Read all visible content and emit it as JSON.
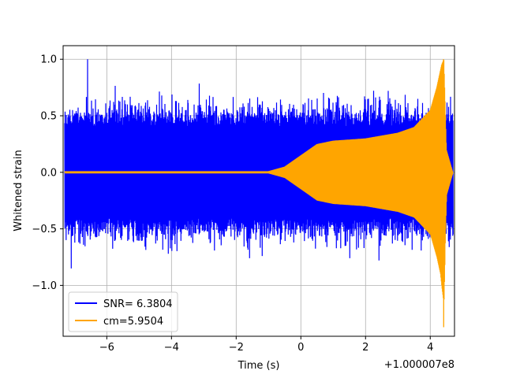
{
  "chart_data": {
    "type": "line",
    "xlabel": "Time (s)",
    "ylabel": "Whitened strain",
    "x_offset_label": "+1.000007e8",
    "xlim": [
      -7.35,
      4.75
    ],
    "ylim": [
      -1.45,
      1.12
    ],
    "x_ticks": [
      -6,
      -4,
      -2,
      0,
      2,
      4
    ],
    "x_tick_labels": [
      "−6",
      "−4",
      "−2",
      "0",
      "2",
      "4"
    ],
    "y_ticks": [
      1.0,
      0.5,
      0.0,
      -0.5,
      -1.0
    ],
    "y_tick_labels": [
      "1.0",
      "0.5",
      "0.0",
      "−0.5",
      "−1.0"
    ],
    "grid": true,
    "legend_position": "lower-left",
    "series": [
      {
        "name": "SNR= 6.3804",
        "color": "#0000ff",
        "kind": "noise",
        "x_range": [
          -7.3,
          4.7
        ],
        "gap": [
          4.35,
          4.45
        ],
        "typical_envelope": 0.45,
        "peak_points": [
          {
            "x": -6.6,
            "y": 1.0
          },
          {
            "x": -7.1,
            "y": -0.85
          },
          {
            "x": 2.7,
            "y": 0.72
          },
          {
            "x": -4.3,
            "y": 0.68
          },
          {
            "x": 1.1,
            "y": 0.62
          },
          {
            "x": -4.1,
            "y": -0.72
          },
          {
            "x": -1.2,
            "y": -0.74
          },
          {
            "x": -1.6,
            "y": -0.76
          },
          {
            "x": 1.5,
            "y": -0.76
          },
          {
            "x": 2.4,
            "y": -0.78
          },
          {
            "x": -3.5,
            "y": 0.64
          },
          {
            "x": 0.8,
            "y": -0.66
          }
        ]
      },
      {
        "name": "cm=5.9504",
        "color": "#ffa500",
        "kind": "chirp",
        "x_range": [
          -7.3,
          4.7
        ],
        "merger_time": 4.42,
        "envelope": [
          {
            "x": -7.3,
            "y": 0.01
          },
          {
            "x": -1.0,
            "y": 0.01
          },
          {
            "x": -0.5,
            "y": 0.05
          },
          {
            "x": 0.0,
            "y": 0.15
          },
          {
            "x": 0.5,
            "y": 0.25
          },
          {
            "x": 1.0,
            "y": 0.28
          },
          {
            "x": 2.0,
            "y": 0.3
          },
          {
            "x": 3.0,
            "y": 0.35
          },
          {
            "x": 3.5,
            "y": 0.4
          },
          {
            "x": 4.0,
            "y": 0.55
          },
          {
            "x": 4.2,
            "y": 0.75
          },
          {
            "x": 4.35,
            "y": 0.95
          },
          {
            "x": 4.42,
            "y": 1.0
          },
          {
            "x": 4.5,
            "y": 0.2
          },
          {
            "x": 4.7,
            "y": 0.0
          }
        ],
        "min_point": {
          "x": 4.42,
          "y": -1.37
        }
      }
    ]
  }
}
